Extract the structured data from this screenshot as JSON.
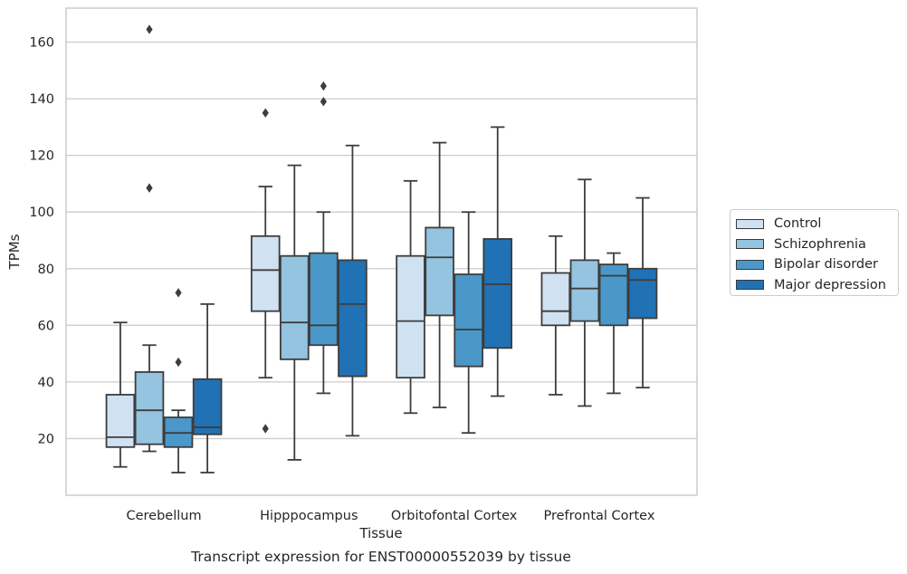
{
  "chart_data": {
    "type": "box",
    "title": "",
    "caption": "Transcript expression for ENST00000552039 by tissue",
    "xlabel": "Tissue",
    "ylabel": "TPMs",
    "ylim": [
      0,
      172
    ],
    "yticks": [
      20,
      40,
      60,
      80,
      100,
      120,
      140,
      160
    ],
    "grid": "horizontal",
    "legend_position": "right",
    "categories": [
      "Cerebellum",
      "Hipppocampus",
      "Orbitofontal Cortex",
      "Prefrontal Cortex"
    ],
    "series": [
      {
        "name": "Control",
        "color": "#d0e1f2",
        "boxes": [
          {
            "whisker_low": 10,
            "q1": 17,
            "median": 20.5,
            "q3": 35.5,
            "whisker_high": 61,
            "outliers": []
          },
          {
            "whisker_low": 41.5,
            "q1": 65,
            "median": 79.5,
            "q3": 91.5,
            "whisker_high": 109,
            "outliers": [
              23.5,
              135
            ]
          },
          {
            "whisker_low": 29,
            "q1": 41.5,
            "median": 61.5,
            "q3": 84.5,
            "whisker_high": 111,
            "outliers": []
          },
          {
            "whisker_low": 35.5,
            "q1": 60,
            "median": 65,
            "q3": 78.5,
            "whisker_high": 91.5,
            "outliers": []
          }
        ]
      },
      {
        "name": "Schizophrenia",
        "color": "#94c4df",
        "boxes": [
          {
            "whisker_low": 15.5,
            "q1": 18,
            "median": 30,
            "q3": 43.5,
            "whisker_high": 53,
            "outliers": [
              108.5,
              164.5
            ]
          },
          {
            "whisker_low": 12.5,
            "q1": 48,
            "median": 61,
            "q3": 84.5,
            "whisker_high": 116.5,
            "outliers": []
          },
          {
            "whisker_low": 31,
            "q1": 63.5,
            "median": 84,
            "q3": 94.5,
            "whisker_high": 124.5,
            "outliers": []
          },
          {
            "whisker_low": 31.5,
            "q1": 61.5,
            "median": 73,
            "q3": 83,
            "whisker_high": 111.5,
            "outliers": []
          }
        ]
      },
      {
        "name": "Bipolar disorder",
        "color": "#4a98c9",
        "boxes": [
          {
            "whisker_low": 8,
            "q1": 17,
            "median": 22,
            "q3": 27.5,
            "whisker_high": 30,
            "outliers": [
              47,
              71.5
            ]
          },
          {
            "whisker_low": 36,
            "q1": 53,
            "median": 60,
            "q3": 85.5,
            "whisker_high": 100,
            "outliers": [
              139,
              144.5
            ]
          },
          {
            "whisker_low": 22,
            "q1": 45.5,
            "median": 58.5,
            "q3": 78,
            "whisker_high": 100,
            "outliers": []
          },
          {
            "whisker_low": 36,
            "q1": 60,
            "median": 77.5,
            "q3": 81.5,
            "whisker_high": 85.5,
            "outliers": []
          }
        ]
      },
      {
        "name": "Major depression",
        "color": "#2171b5",
        "boxes": [
          {
            "whisker_low": 8,
            "q1": 21.5,
            "median": 24,
            "q3": 41,
            "whisker_high": 67.5,
            "outliers": []
          },
          {
            "whisker_low": 21,
            "q1": 42,
            "median": 67.5,
            "q3": 83,
            "whisker_high": 123.5,
            "outliers": []
          },
          {
            "whisker_low": 35,
            "q1": 52,
            "median": 74.5,
            "q3": 90.5,
            "whisker_high": 130,
            "outliers": []
          },
          {
            "whisker_low": 38,
            "q1": 62.5,
            "median": 76,
            "q3": 80,
            "whisker_high": 105,
            "outliers": []
          }
        ]
      }
    ]
  }
}
